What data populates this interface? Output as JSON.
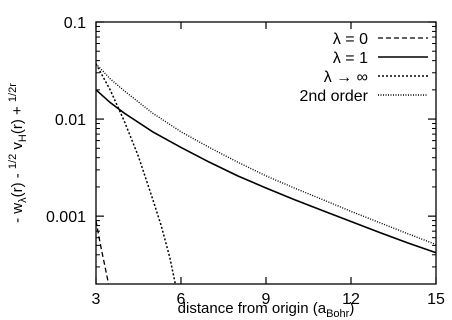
{
  "chart_data": {
    "type": "line",
    "xlabel": "distance from origin (a",
    "xlabel_sub": "Bohr",
    "xlabel_close": ")",
    "ylabel_parts": [
      "- w",
      "λ",
      "(r) - ",
      "1/2",
      " v",
      "H",
      "(r) + ",
      "1/2r"
    ],
    "xlim": [
      3,
      15
    ],
    "ylim": [
      0.0002,
      0.1
    ],
    "yscale": "log",
    "x_ticks": [
      3,
      6,
      9,
      12,
      15
    ],
    "x_tick_labels": [
      "3",
      "6",
      "9",
      "12",
      "15"
    ],
    "y_ticks": [
      0.001,
      0.01,
      0.1
    ],
    "y_tick_labels": [
      "0.001",
      "0.01",
      "0.1"
    ],
    "grid": false,
    "legend_position": "top-right",
    "series": [
      {
        "name": "λ = 0",
        "style": "dashed",
        "x": [
          3.0,
          3.1,
          3.2,
          3.3,
          3.4,
          3.5
        ],
        "y": [
          0.0009,
          0.00062,
          0.00044,
          0.00032,
          0.00023,
          0.00017
        ]
      },
      {
        "name": "λ = 1",
        "style": "solid",
        "x": [
          3,
          3.5,
          4,
          5,
          6,
          7,
          8,
          9,
          10,
          11,
          12,
          13,
          14,
          15
        ],
        "y": [
          0.02,
          0.0148,
          0.0115,
          0.0074,
          0.0051,
          0.0036,
          0.0026,
          0.00195,
          0.00148,
          0.00114,
          0.00088,
          0.00068,
          0.00053,
          0.00042
        ]
      },
      {
        "name": "λ → ∞",
        "style": "dotted",
        "x": [
          3.0,
          3.5,
          4.0,
          4.5,
          5.0,
          5.3,
          5.6,
          5.8
        ],
        "y": [
          0.037,
          0.02,
          0.0095,
          0.0041,
          0.0015,
          0.0008,
          0.00038,
          0.0002
        ]
      },
      {
        "name": "2nd order",
        "style": "densely-dotted",
        "x": [
          3,
          3.5,
          4,
          5,
          6,
          7,
          8,
          9,
          10,
          11,
          12,
          13,
          14,
          15
        ],
        "y": [
          0.037,
          0.026,
          0.0195,
          0.0115,
          0.0074,
          0.0051,
          0.0036,
          0.0026,
          0.00195,
          0.00148,
          0.00112,
          0.00086,
          0.00066,
          0.00051
        ]
      }
    ]
  }
}
